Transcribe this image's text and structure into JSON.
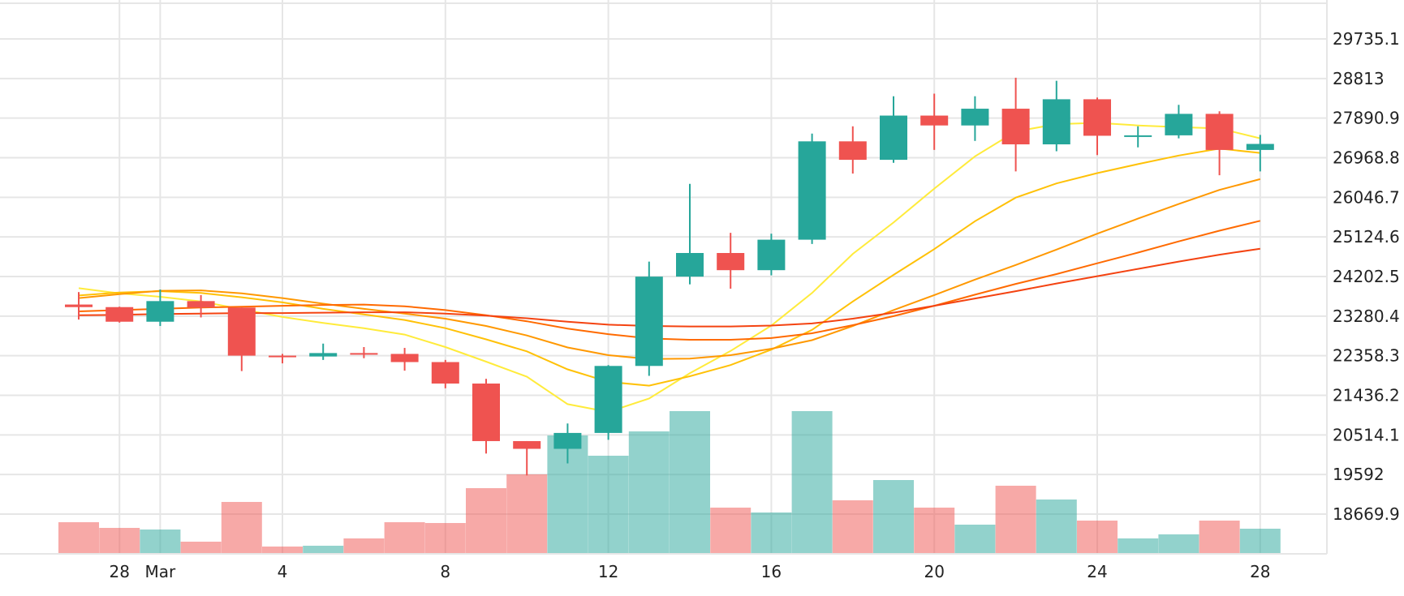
{
  "chart_data": {
    "type": "candlestick",
    "x_tick_labels": [
      "28",
      "Mar",
      "4",
      "8",
      "12",
      "16",
      "20",
      "24",
      "28"
    ],
    "y_tick_labels": [
      "29735.1",
      "28813",
      "27890.9",
      "26968.8",
      "26046.7",
      "25124.6",
      "24202.5",
      "23280.4",
      "22358.3",
      "21436.2",
      "20514.1",
      "19592",
      "18669.9"
    ],
    "y_ticks": [
      29735.1,
      28813.0,
      27890.9,
      26968.8,
      26046.7,
      25124.6,
      24202.5,
      23280.4,
      22358.3,
      21436.2,
      20514.1,
      19592.0,
      18669.9
    ],
    "grid": true,
    "candles": [
      {
        "date": "2023-02-27",
        "open": 23550,
        "high": 23840,
        "low": 23200,
        "close": 23490
      },
      {
        "date": "2023-02-28",
        "open": 23490,
        "high": 23500,
        "low": 23130,
        "close": 23150
      },
      {
        "date": "2023-03-01",
        "open": 23150,
        "high": 23900,
        "low": 23050,
        "close": 23630
      },
      {
        "date": "2023-03-02",
        "open": 23630,
        "high": 23770,
        "low": 23250,
        "close": 23480
      },
      {
        "date": "2023-03-03",
        "open": 23480,
        "high": 23480,
        "low": 22000,
        "close": 22360
      },
      {
        "date": "2023-03-04",
        "open": 22360,
        "high": 22400,
        "low": 22180,
        "close": 22340
      },
      {
        "date": "2023-03-05",
        "open": 22340,
        "high": 22640,
        "low": 22260,
        "close": 22420
      },
      {
        "date": "2023-03-06",
        "open": 22420,
        "high": 22560,
        "low": 22300,
        "close": 22400
      },
      {
        "date": "2023-03-07",
        "open": 22400,
        "high": 22540,
        "low": 22010,
        "close": 22210
      },
      {
        "date": "2023-03-08",
        "open": 22210,
        "high": 22260,
        "low": 21600,
        "close": 21710
      },
      {
        "date": "2023-03-09",
        "open": 21710,
        "high": 21820,
        "low": 20080,
        "close": 20370
      },
      {
        "date": "2023-03-10",
        "open": 20370,
        "high": 20370,
        "low": 19570,
        "close": 20190
      },
      {
        "date": "2023-03-11",
        "open": 20190,
        "high": 20780,
        "low": 19850,
        "close": 20560
      },
      {
        "date": "2023-03-12",
        "open": 20560,
        "high": 22140,
        "low": 20400,
        "close": 22120
      },
      {
        "date": "2023-03-13",
        "open": 22120,
        "high": 24550,
        "low": 21890,
        "close": 24200
      },
      {
        "date": "2023-03-14",
        "open": 24200,
        "high": 26360,
        "low": 24020,
        "close": 24750
      },
      {
        "date": "2023-03-15",
        "open": 24750,
        "high": 25220,
        "low": 23920,
        "close": 24350
      },
      {
        "date": "2023-03-16",
        "open": 24350,
        "high": 25200,
        "low": 24230,
        "close": 25060
      },
      {
        "date": "2023-03-17",
        "open": 25060,
        "high": 27530,
        "low": 24960,
        "close": 27350
      },
      {
        "date": "2023-03-18",
        "open": 27350,
        "high": 27700,
        "low": 26600,
        "close": 26920
      },
      {
        "date": "2023-03-19",
        "open": 26920,
        "high": 28400,
        "low": 26850,
        "close": 27950
      },
      {
        "date": "2023-03-20",
        "open": 27950,
        "high": 28460,
        "low": 27150,
        "close": 27720
      },
      {
        "date": "2023-03-21",
        "open": 27720,
        "high": 28400,
        "low": 27360,
        "close": 28110
      },
      {
        "date": "2023-03-22",
        "open": 28110,
        "high": 28830,
        "low": 26650,
        "close": 27280
      },
      {
        "date": "2023-03-23",
        "open": 27280,
        "high": 28760,
        "low": 27120,
        "close": 28330
      },
      {
        "date": "2023-03-24",
        "open": 28330,
        "high": 28370,
        "low": 27030,
        "close": 27480
      },
      {
        "date": "2023-03-25",
        "open": 27480,
        "high": 27700,
        "low": 27210,
        "close": 27490
      },
      {
        "date": "2023-03-26",
        "open": 27490,
        "high": 28200,
        "low": 27420,
        "close": 27990
      },
      {
        "date": "2023-03-27",
        "open": 27990,
        "high": 28050,
        "low": 26560,
        "close": 27150
      },
      {
        "date": "2023-03-28",
        "open": 27150,
        "high": 27500,
        "low": 26650,
        "close": 27290
      }
    ],
    "volume_relative": [
      0.38,
      0.31,
      0.29,
      0.14,
      0.63,
      0.08,
      0.09,
      0.18,
      0.38,
      0.37,
      0.8,
      0.97,
      1.45,
      1.2,
      1.5,
      1.75,
      0.56,
      0.5,
      1.75,
      0.65,
      0.9,
      0.56,
      0.35,
      0.83,
      0.66,
      0.4,
      0.18,
      0.23,
      0.4,
      0.3
    ],
    "moving_averages": [
      {
        "color": "#FFEB3B",
        "values": [
          23930,
          23810,
          23730,
          23620,
          23440,
          23260,
          23120,
          23000,
          22850,
          22560,
          22220,
          21870,
          21230,
          21050,
          21360,
          21950,
          22470,
          23060,
          23820,
          24730,
          25460,
          26250,
          27000,
          27580,
          27750,
          27780,
          27720,
          27680,
          27650,
          27420
        ]
      },
      {
        "color": "#FFC107",
        "values": [
          23760,
          23830,
          23860,
          23820,
          23720,
          23600,
          23450,
          23320,
          23190,
          23000,
          22740,
          22460,
          22040,
          21750,
          21660,
          21880,
          22140,
          22500,
          22960,
          23620,
          24240,
          24840,
          25490,
          26040,
          26370,
          26610,
          26820,
          27020,
          27180,
          27080
        ]
      },
      {
        "color": "#FF9800",
        "values": [
          23700,
          23790,
          23870,
          23880,
          23810,
          23700,
          23570,
          23450,
          23340,
          23220,
          23050,
          22830,
          22550,
          22370,
          22280,
          22290,
          22370,
          22520,
          22720,
          23050,
          23420,
          23770,
          24130,
          24470,
          24830,
          25200,
          25550,
          25890,
          26220,
          26470
        ]
      },
      {
        "color": "#FF6A00",
        "values": [
          23390,
          23420,
          23450,
          23480,
          23500,
          23520,
          23540,
          23550,
          23510,
          23420,
          23300,
          23160,
          22990,
          22860,
          22760,
          22730,
          22730,
          22770,
          22880,
          23070,
          23280,
          23520,
          23780,
          24030,
          24260,
          24510,
          24760,
          25020,
          25270,
          25500
        ]
      },
      {
        "color": "#F44311",
        "values": [
          23300,
          23310,
          23330,
          23340,
          23350,
          23350,
          23360,
          23370,
          23370,
          23340,
          23290,
          23230,
          23150,
          23080,
          23050,
          23040,
          23040,
          23060,
          23110,
          23220,
          23360,
          23520,
          23690,
          23860,
          24040,
          24210,
          24380,
          24550,
          24710,
          24850
        ]
      }
    ],
    "colors": {
      "up": "#26A69A",
      "down": "#EF5350",
      "volume_up": "#26A69A",
      "volume_down": "#EF5350",
      "grid": "#E6E6E6",
      "text": "#222222"
    }
  }
}
